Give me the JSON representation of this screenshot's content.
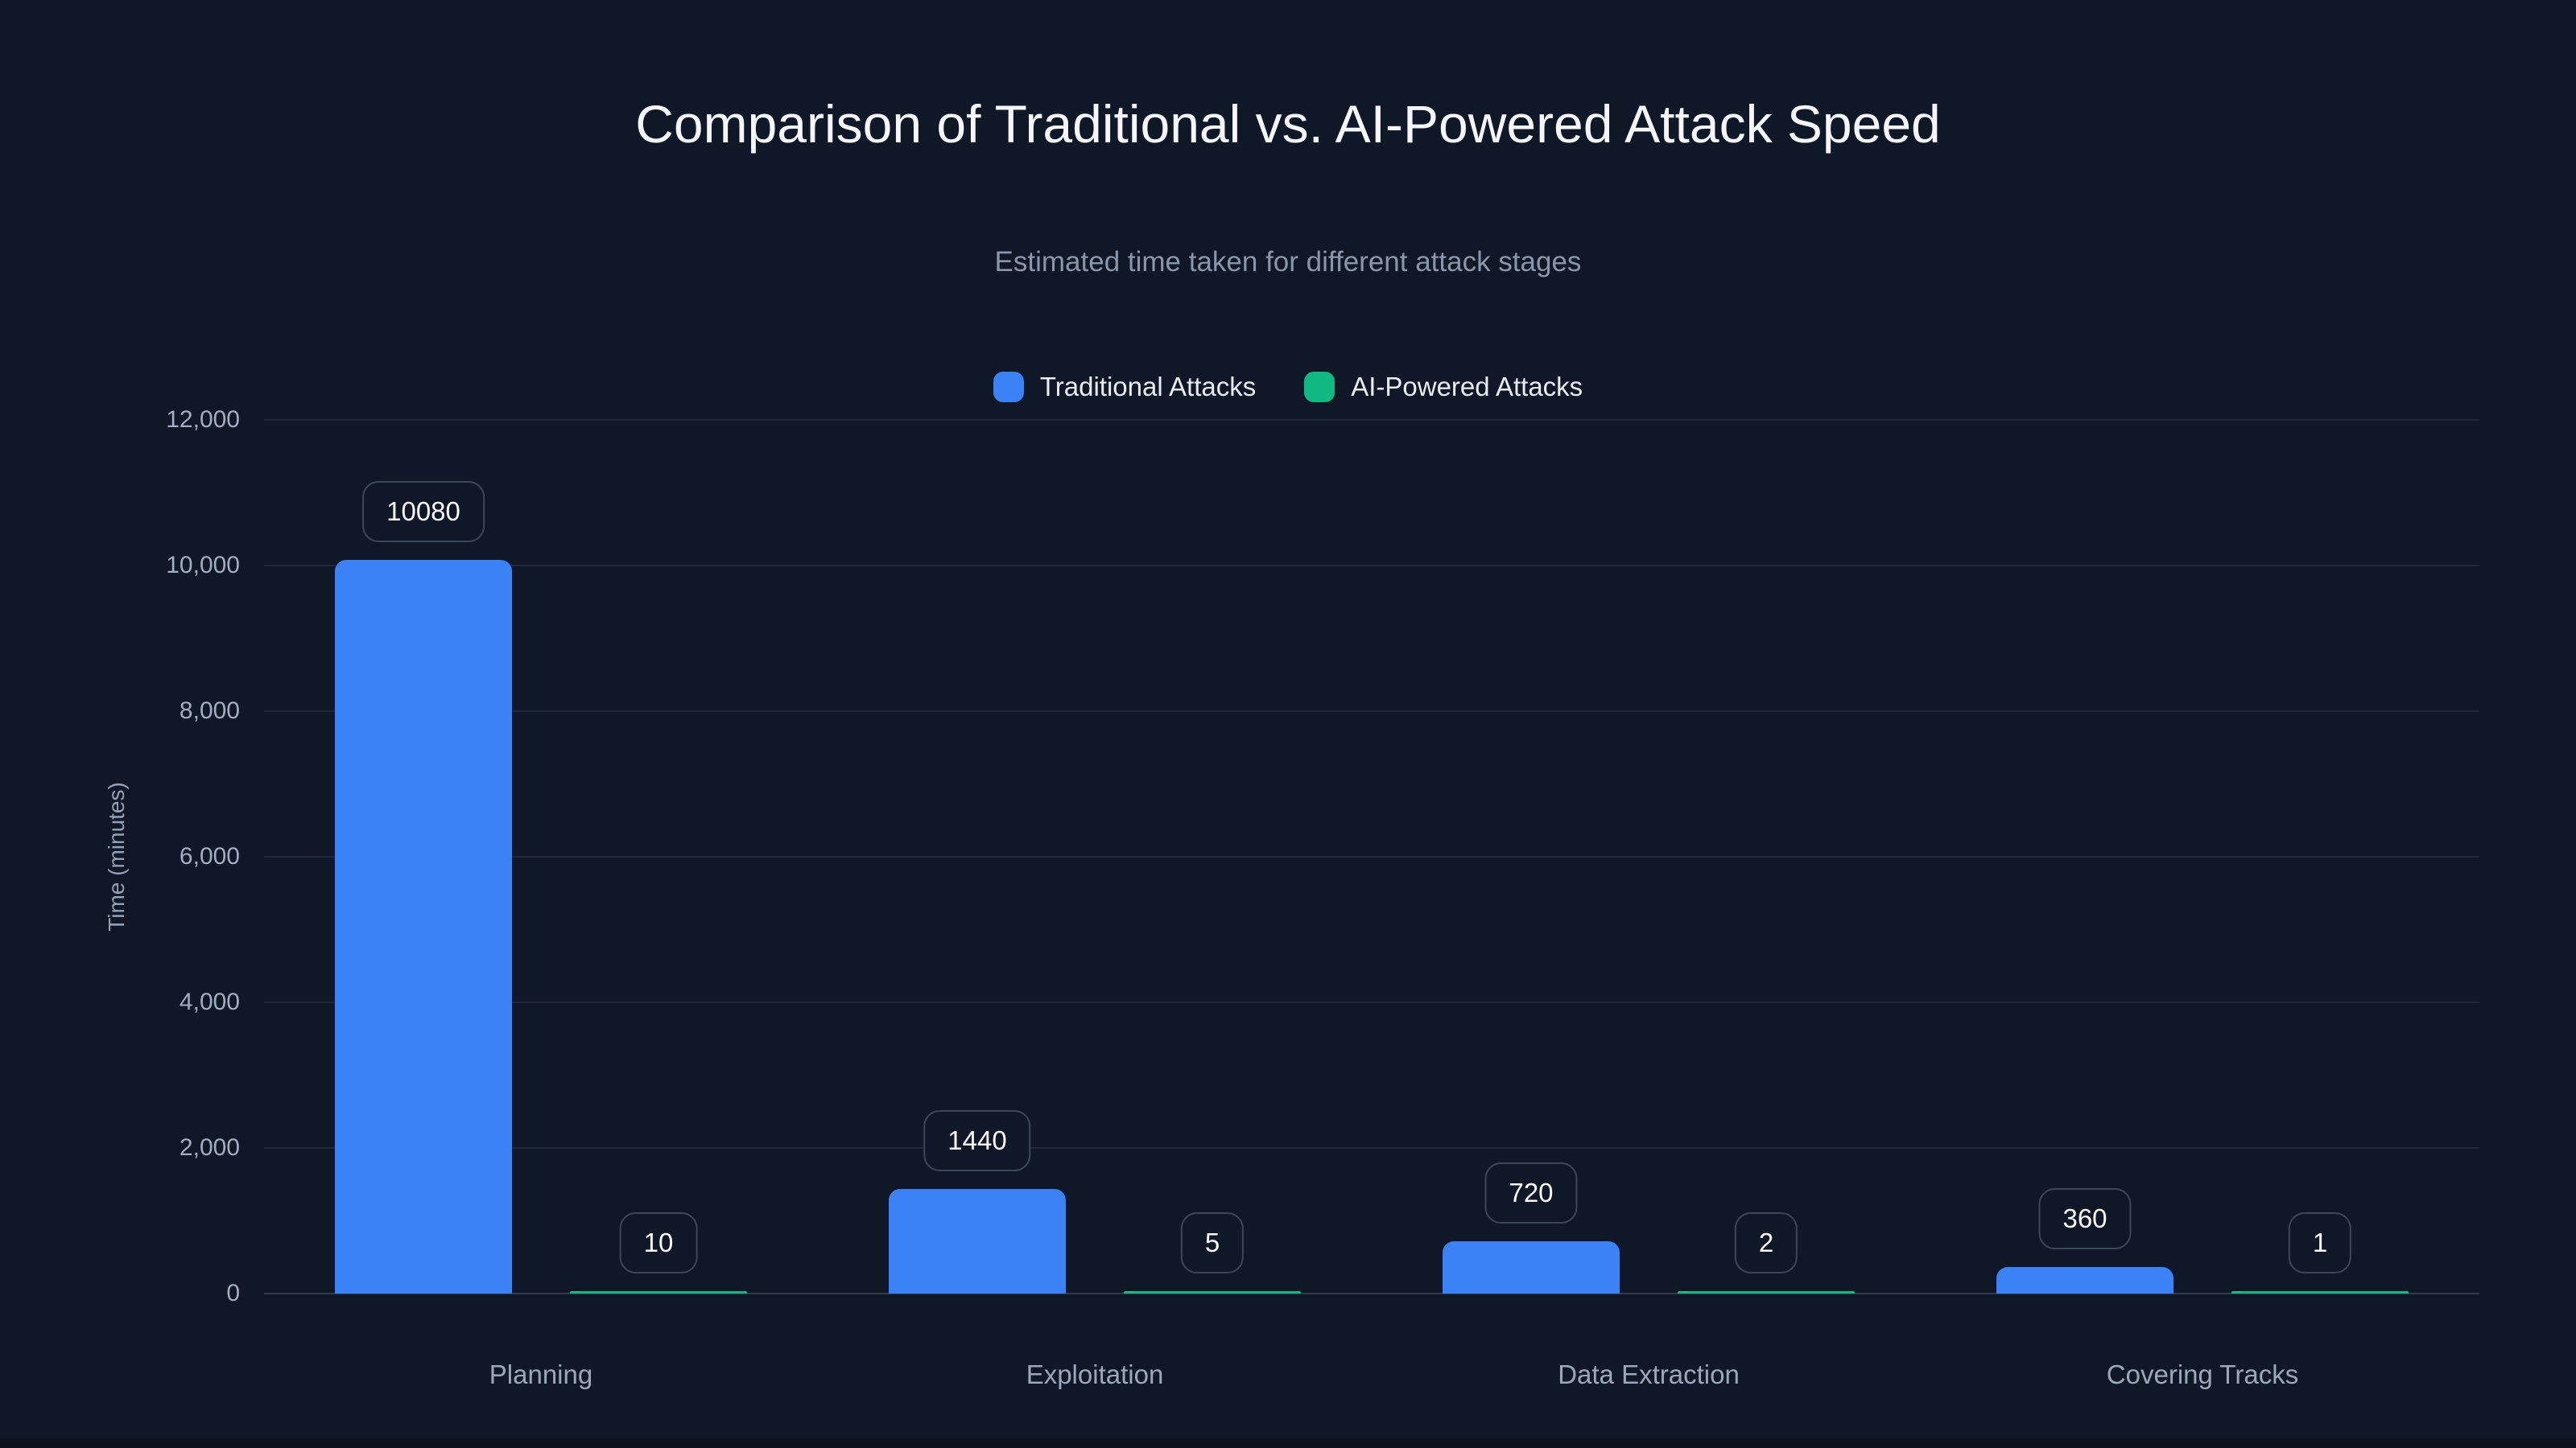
{
  "chart_data": {
    "type": "bar",
    "title": "Comparison of Traditional vs. AI-Powered Attack Speed",
    "subtitle": "Estimated time taken for different attack stages",
    "categories": [
      "Planning",
      "Exploitation",
      "Data Extraction",
      "Covering Tracks"
    ],
    "series": [
      {
        "name": "Traditional Attacks",
        "color": "#3b82f6",
        "values": [
          10080,
          1440,
          720,
          360
        ]
      },
      {
        "name": "AI-Powered Attacks",
        "color": "#10b981",
        "values": [
          10,
          5,
          2,
          1
        ]
      }
    ],
    "value_labels": {
      "Traditional Attacks": [
        "10080",
        "1440",
        "720",
        "360"
      ],
      "AI-Powered Attacks": [
        "10",
        "5",
        "2",
        "1"
      ]
    },
    "ylabel": "Time (minutes)",
    "ylim": [
      0,
      12000
    ],
    "ytick_step": 2000,
    "ytick_labels": [
      "0",
      "2,000",
      "4,000",
      "6,000",
      "8,000",
      "10,000",
      "12,000"
    ],
    "grid": true,
    "legend_position": "top"
  },
  "theme": {
    "background": "#101726",
    "title_color": "#f3f6fa",
    "subtitle_color": "#8a96a9",
    "tick_color": "#a2aec2",
    "traditional_blue": "#3b82f6",
    "ai_green": "#10b981"
  }
}
